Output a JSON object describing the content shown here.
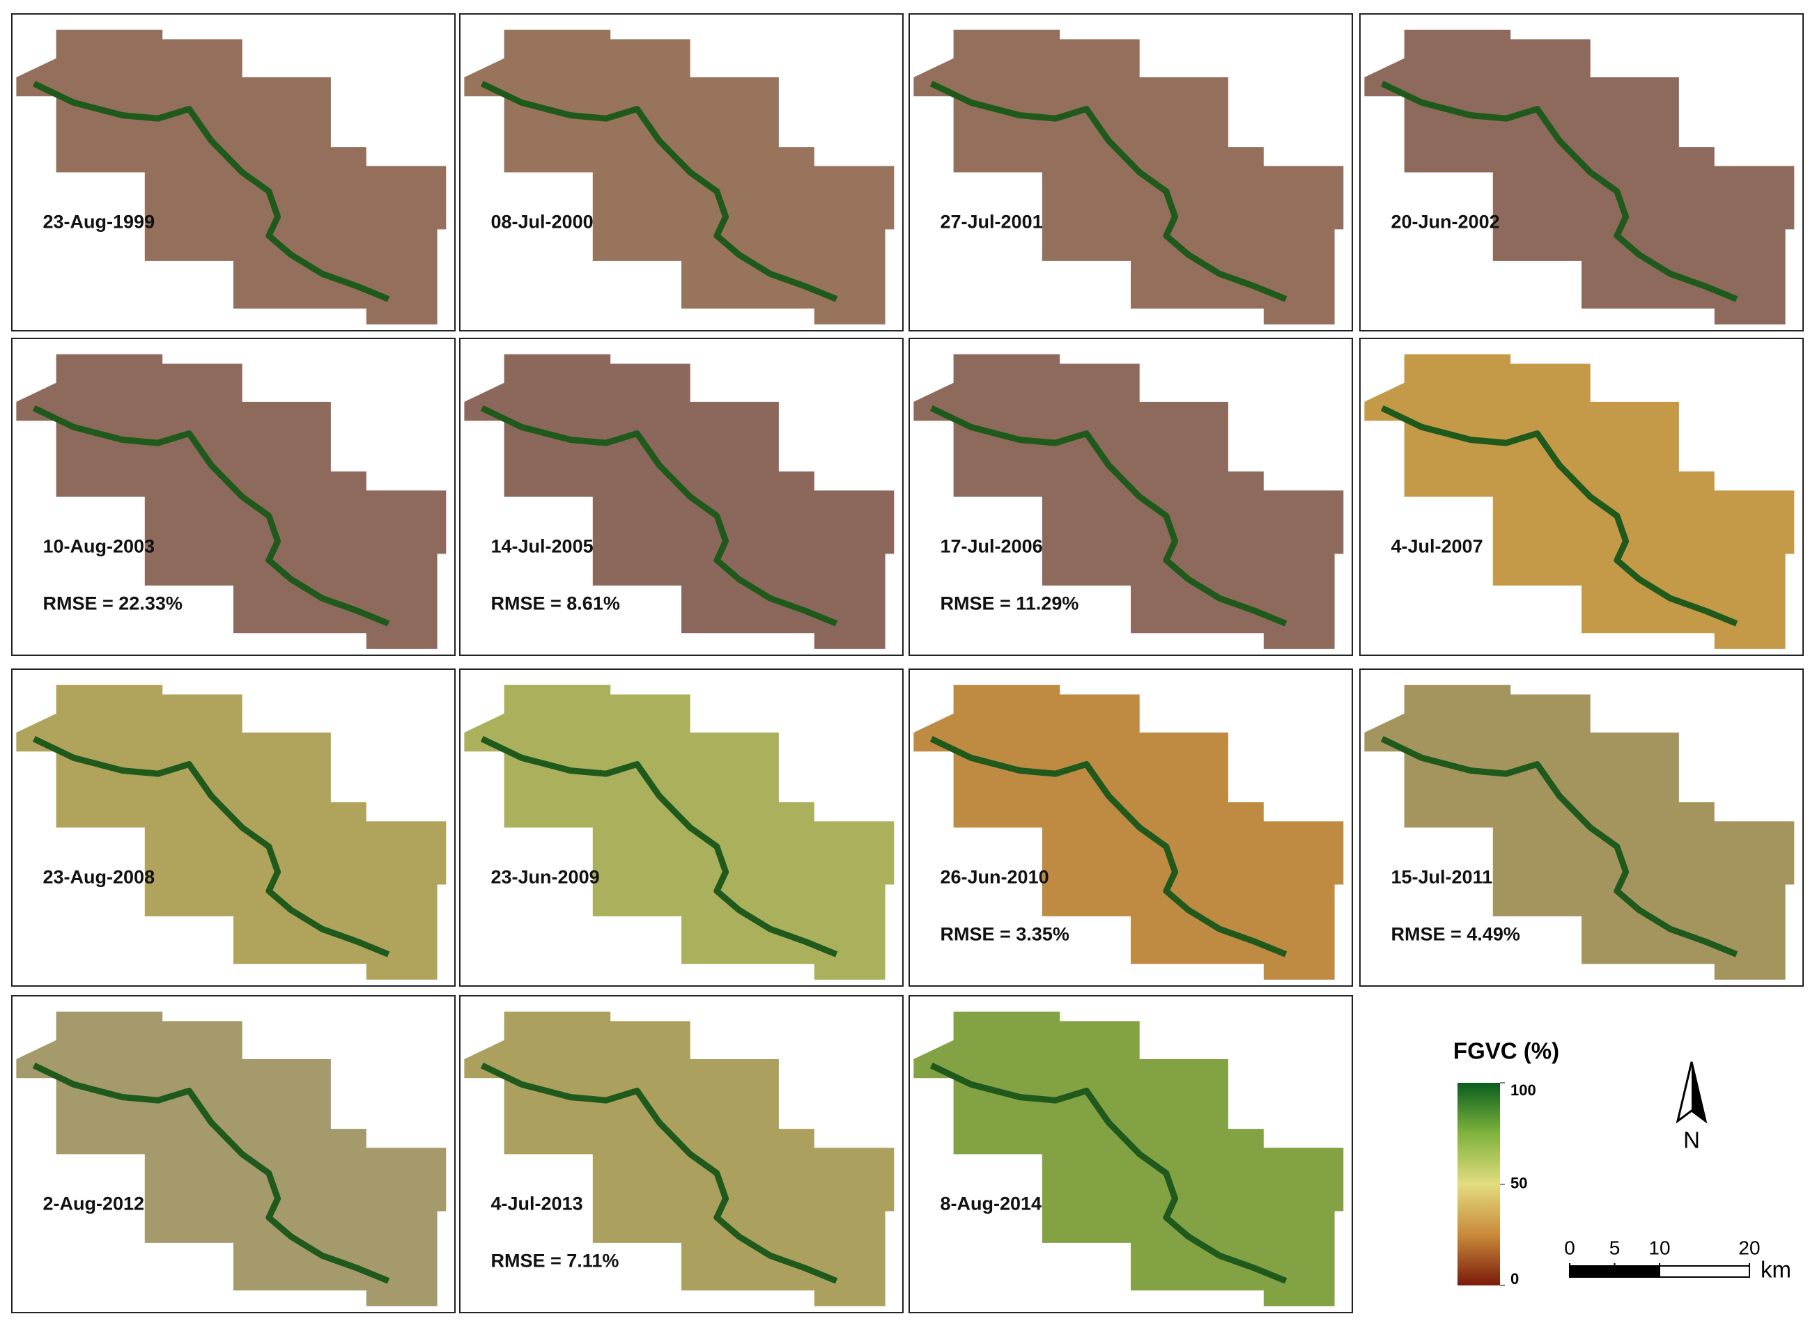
{
  "panels": [
    {
      "date": "23-Aug-1999",
      "color": "#94705c"
    },
    {
      "date": "08-Jul-2000",
      "color": "#98745c"
    },
    {
      "date": "27-Jul-2001",
      "color": "#94705c"
    },
    {
      "date": "20-Jun-2002",
      "color": "#8e6a5c"
    },
    {
      "date": "10-Aug-2003",
      "rmse": "RMSE = 22.33%",
      "color": "#8e6a5c"
    },
    {
      "date": "14-Jul-2005",
      "rmse": "RMSE = 8.61%",
      "color": "#8c685c"
    },
    {
      "date": "17-Jul-2006",
      "rmse": "RMSE = 11.29%",
      "color": "#8e6a5c"
    },
    {
      "date": "4-Jul-2007",
      "color": "#c49a48"
    },
    {
      "date": "23-Aug-2008",
      "color": "#b0a45c"
    },
    {
      "date": "23-Jun-2009",
      "color": "#aab05c"
    },
    {
      "date": "26-Jun-2010",
      "rmse": "RMSE = 3.35%",
      "color": "#bf8a42"
    },
    {
      "date": "15-Jul-2011",
      "rmse": "RMSE = 4.49%",
      "color": "#a4945e"
    },
    {
      "date": "2-Aug-2012",
      "color": "#a49a6c"
    },
    {
      "date": "4-Jul-2013",
      "rmse": "RMSE = 7.11%",
      "color": "#aca05e"
    },
    {
      "date": "8-Aug-2014",
      "color": "#82a244"
    }
  ],
  "legend": {
    "title": "FGVC (%)",
    "ticks": [
      100,
      50,
      0
    ],
    "range": [
      0,
      100
    ]
  },
  "north": "N",
  "scale_bar": {
    "ticks": [
      0,
      5,
      10,
      20
    ],
    "range": [
      0,
      20
    ],
    "unit": "km"
  }
}
